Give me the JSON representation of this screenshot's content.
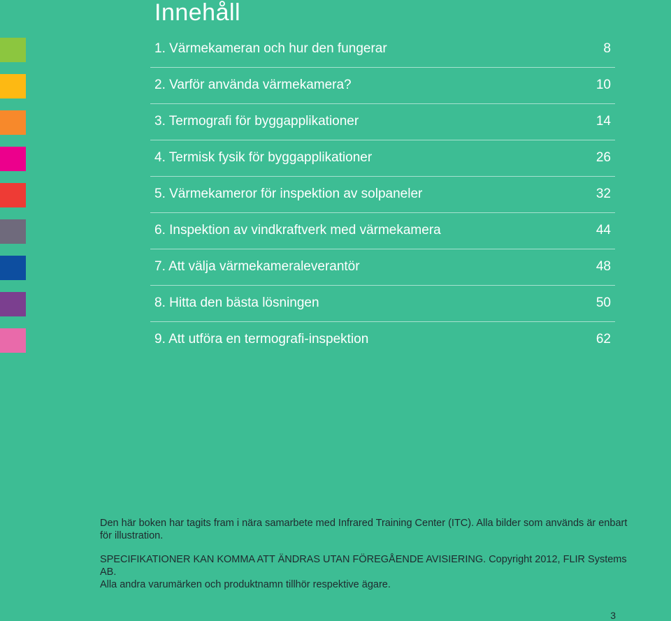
{
  "title": "Innehåll",
  "toc": [
    {
      "label": "1. Värmekameran och hur den fungerar",
      "page": "8",
      "color": "#8cc63f"
    },
    {
      "label": "2. Varför använda värmekamera?",
      "page": "10",
      "color": "#fdb913"
    },
    {
      "label": "3. Termografi för byggapplikationer",
      "page": "14",
      "color": "#f7892b"
    },
    {
      "label": "4. Termisk fysik för byggapplikationer",
      "page": "26",
      "color": "#ec008c"
    },
    {
      "label": "5. Värmekameror för inspektion av solpaneler",
      "page": "32",
      "color": "#ee3b35"
    },
    {
      "label": "6. Inspektion av vindkraftverk med värmekamera",
      "page": "44",
      "color": "#6f6a7c"
    },
    {
      "label": "7. Att välja värmekameraleverantör",
      "page": "48",
      "color": "#0d4ea0"
    },
    {
      "label": "8. Hitta den bästa lösningen",
      "page": "50",
      "color": "#7b3f8f"
    },
    {
      "label": "9. Att utföra en termografi-inspektion",
      "page": "62",
      "color": "#e96aaa"
    }
  ],
  "notes": {
    "para1": "Den här boken har tagits fram i nära samarbete med Infrared Training Center (ITC). Alla bilder som används är enbart för illustration.",
    "para2_line1": "SPECIFIKATIONER KAN KOMMA ATT ÄNDRAS UTAN FÖREGÅENDE AVISIERING. Copyright 2012, FLIR Systems AB.",
    "para2_line2": "Alla andra varumärken och produktnamn tillhör respektive ägare."
  },
  "page_number": "3",
  "colors": {
    "background": "#3dbd94",
    "heading": "#ffffff",
    "body_text": "#1f2a2e"
  }
}
